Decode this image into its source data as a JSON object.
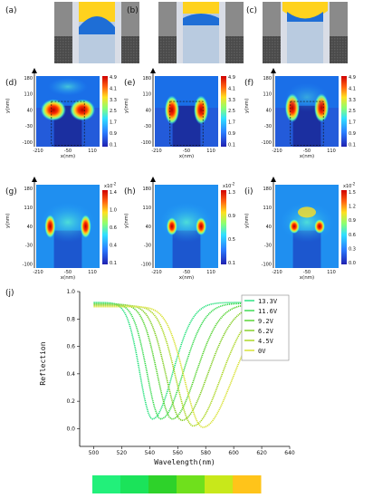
{
  "panel_labels": [
    "(a)",
    "(b)",
    "(c)",
    "(d)",
    "(e)",
    "(f)",
    "(g)",
    "(h)",
    "(i)",
    "(j)"
  ],
  "maps": {
    "y_label": "y(nm)",
    "x_label": "x(nm)",
    "x_ticks": [
      "-210",
      "-50",
      "110"
    ],
    "y_ticks": [
      "180",
      "110",
      "40",
      "-30",
      "-100"
    ],
    "field_colorbar_ticks": [
      "4.9",
      "4.1",
      "3.3",
      "2.5",
      "1.7",
      "0.9",
      "0.1"
    ],
    "absorption_colorbars": [
      {
        "exponent": "x10",
        "sup": "-2",
        "ticks": [
          "1.4",
          "1.0",
          "0.6",
          "0.4",
          "0.1"
        ]
      },
      {
        "exponent": "x10",
        "sup": "-2",
        "ticks": [
          "1.3",
          "0.9",
          "0.5",
          "0.1"
        ]
      },
      {
        "exponent": "x10",
        "sup": "-2",
        "ticks": [
          "1.5",
          "1.2",
          "0.9",
          "0.6",
          "0.3",
          "0.0"
        ]
      }
    ]
  },
  "chart_data": {
    "type": "line",
    "title": "",
    "xlabel": "Wavelength(nm)",
    "ylabel": "Reflection",
    "xlim": [
      490,
      640
    ],
    "ylim": [
      -0.05,
      1.0
    ],
    "x_ticks": [
      "500",
      "520",
      "540",
      "560",
      "580",
      "600",
      "620",
      "640"
    ],
    "y_ticks": [
      "0.0",
      "0.2",
      "0.4",
      "0.6",
      "0.8",
      "1.0"
    ],
    "legend_position": "top-right",
    "series": [
      {
        "name": "13.3V",
        "color": "#22e07a",
        "dip_x": 542,
        "dip_y": 0.07
      },
      {
        "name": "11.6V",
        "color": "#33d94a",
        "dip_x": 548,
        "dip_y": 0.07
      },
      {
        "name": "9.2V",
        "color": "#4fd12a",
        "dip_x": 556,
        "dip_y": 0.07
      },
      {
        "name": "6.2V",
        "color": "#7fcc1e",
        "dip_x": 563,
        "dip_y": 0.06
      },
      {
        "name": "4.5V",
        "color": "#a8d51a",
        "dip_x": 571,
        "dip_y": 0.02
      },
      {
        "name": "0V",
        "color": "#d6e02a",
        "dip_x": 578,
        "dip_y": 0.01
      }
    ]
  },
  "color_strip": [
    "#22f07a",
    "#1be35a",
    "#2ed22a",
    "#6fe01c",
    "#c8e81a",
    "#ffc41a"
  ]
}
